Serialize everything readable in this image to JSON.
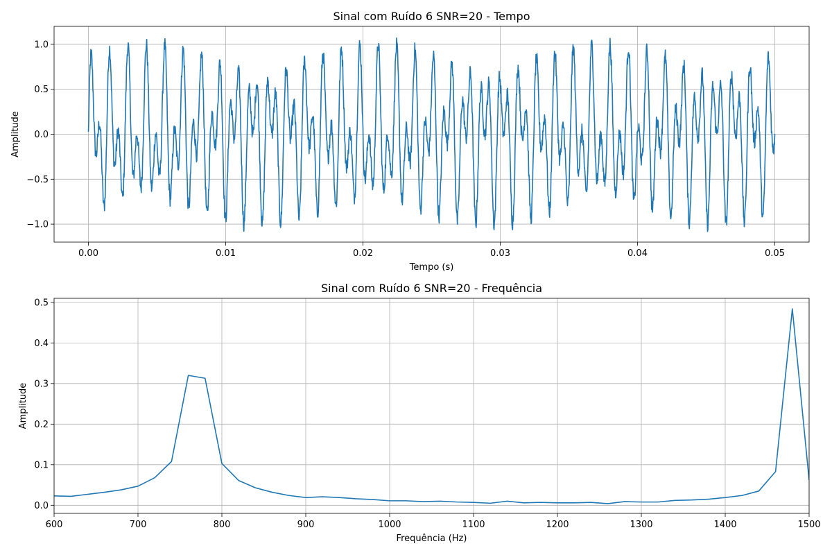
{
  "chart_data": [
    {
      "type": "line",
      "title": "Sinal com Ruído 6 SNR=20 - Tempo",
      "xlabel": "Tempo (s)",
      "ylabel": "Amplitude",
      "xlim": [
        -0.0025,
        0.0525
      ],
      "ylim": [
        -1.2,
        1.2
      ],
      "grid": true,
      "xticks": [
        0.0,
        0.01,
        0.02,
        0.03,
        0.04,
        0.05
      ],
      "xtick_labels": [
        "0.00",
        "0.01",
        "0.02",
        "0.03",
        "0.04",
        "0.05"
      ],
      "yticks": [
        -1.0,
        -0.5,
        0.0,
        0.5,
        1.0
      ],
      "ytick_labels": [
        "−1.0",
        "−0.5",
        "0.0",
        "0.5",
        "1.0"
      ],
      "line_color": "#1f77b4",
      "signal": {
        "duration": 0.05,
        "components": [
          {
            "frequency": 770,
            "amplitude": 0.5
          },
          {
            "frequency": 1480,
            "amplitude": 0.5
          }
        ],
        "snr_db": 20
      }
    },
    {
      "type": "line",
      "title": "Sinal com Ruído 6 SNR=20 - Frequência",
      "xlabel": "Frequência (Hz)",
      "ylabel": "Amplitude",
      "xlim": [
        600,
        1500
      ],
      "ylim": [
        -0.02,
        0.51
      ],
      "grid": true,
      "xticks": [
        600,
        700,
        800,
        900,
        1000,
        1100,
        1200,
        1300,
        1400,
        1500
      ],
      "xtick_labels": [
        "600",
        "700",
        "800",
        "900",
        "1000",
        "1100",
        "1200",
        "1300",
        "1400",
        "1500"
      ],
      "yticks": [
        0.0,
        0.1,
        0.2,
        0.3,
        0.4,
        0.5
      ],
      "ytick_labels": [
        "0.0",
        "0.1",
        "0.2",
        "0.3",
        "0.4",
        "0.5"
      ],
      "line_color": "#1f77b4",
      "x": [
        600,
        620,
        640,
        660,
        680,
        700,
        720,
        740,
        760,
        780,
        800,
        820,
        840,
        860,
        880,
        900,
        920,
        940,
        960,
        980,
        1000,
        1020,
        1040,
        1060,
        1080,
        1100,
        1120,
        1140,
        1160,
        1180,
        1200,
        1220,
        1240,
        1260,
        1280,
        1300,
        1320,
        1340,
        1360,
        1380,
        1400,
        1420,
        1440,
        1460,
        1480,
        1500
      ],
      "y": [
        0.023,
        0.022,
        0.027,
        0.032,
        0.038,
        0.047,
        0.068,
        0.108,
        0.32,
        0.313,
        0.103,
        0.061,
        0.043,
        0.032,
        0.024,
        0.019,
        0.021,
        0.019,
        0.016,
        0.014,
        0.011,
        0.011,
        0.009,
        0.01,
        0.008,
        0.007,
        0.005,
        0.01,
        0.006,
        0.007,
        0.006,
        0.006,
        0.007,
        0.004,
        0.009,
        0.008,
        0.008,
        0.012,
        0.013,
        0.015,
        0.019,
        0.024,
        0.035,
        0.083,
        0.484,
        0.062
      ]
    }
  ]
}
